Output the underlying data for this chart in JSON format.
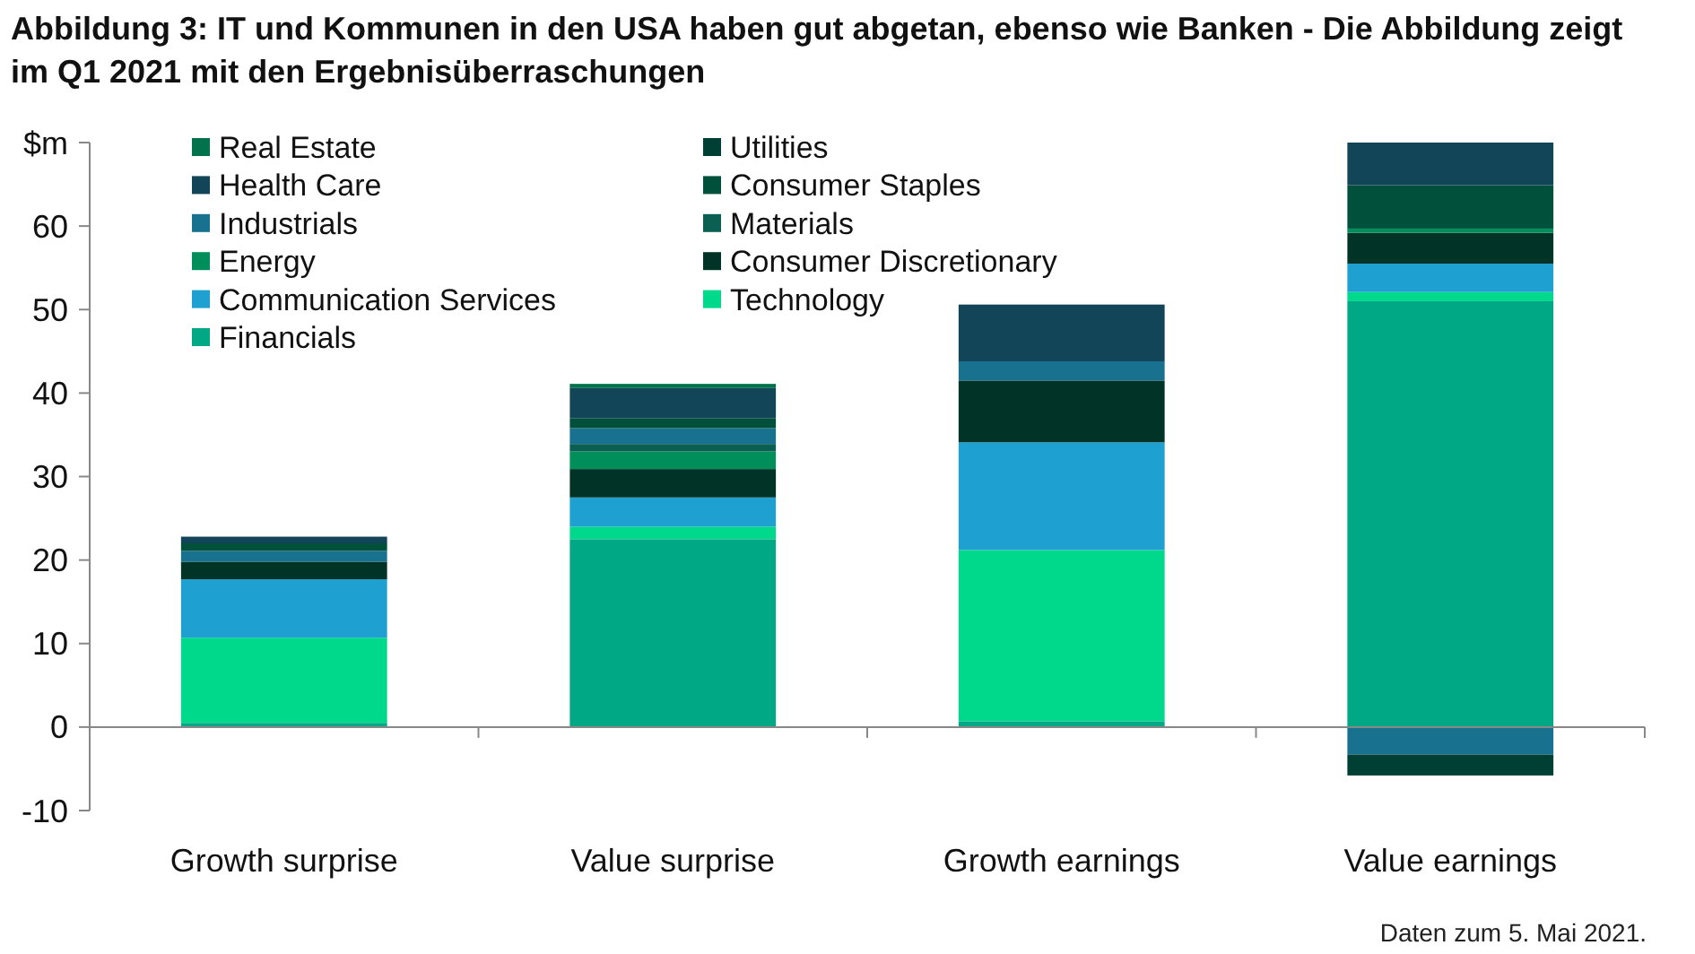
{
  "chart_data": {
    "type": "bar",
    "title": "Abbildung 3: IT und Kommunen in den USA haben gut abgetan, ebenso wie Banken - Die Abbildung zeigt im Q1 2021 mit den Ergebnisüberraschungen",
    "categories": [
      "Growth surprise",
      "Value surprise",
      "Growth earnings",
      "Value earnings"
    ],
    "stacked": true,
    "series": [
      {
        "name": "Financials",
        "color": "#00a886",
        "values": [
          0.5,
          22.5,
          0.7,
          51.0
        ]
      },
      {
        "name": "Technology",
        "color": "#00d98b",
        "values": [
          10.2,
          1.5,
          20.5,
          1.1
        ]
      },
      {
        "name": "Communication Services",
        "color": "#1ea0d1",
        "values": [
          7.0,
          3.5,
          12.9,
          3.4
        ]
      },
      {
        "name": "Consumer Discretionary",
        "color": "#013327",
        "values": [
          2.1,
          3.4,
          7.4,
          3.7
        ]
      },
      {
        "name": "Energy",
        "color": "#008f5b",
        "values": [
          null,
          2.1,
          null,
          0.5
        ]
      },
      {
        "name": "Materials",
        "color": "#0b5e52",
        "values": [
          null,
          0.9,
          null,
          null
        ]
      },
      {
        "name": "Industrials",
        "color": "#18718f",
        "values": [
          1.3,
          1.9,
          2.3,
          -3.3
        ]
      },
      {
        "name": "Consumer Staples",
        "color": "#00503b",
        "values": [
          0.9,
          1.2,
          null,
          5.2
        ]
      },
      {
        "name": "Health Care",
        "color": "#124557",
        "values": [
          0.8,
          3.6,
          6.8,
          5.1
        ]
      },
      {
        "name": "Utilities",
        "color": "#003f33",
        "values": [
          null,
          null,
          null,
          -2.5
        ]
      },
      {
        "name": "Real Estate",
        "color": "#00734c",
        "values": [
          null,
          0.5,
          null,
          null
        ]
      }
    ],
    "ylim": [
      -10,
      70
    ],
    "yticks": [
      -10,
      0,
      10,
      20,
      30,
      40,
      50,
      60,
      {
        "value": 70,
        "label": "$m"
      }
    ],
    "legend": "top left",
    "annotations": [
      "Daten zum 5. Mai 2021."
    ]
  }
}
